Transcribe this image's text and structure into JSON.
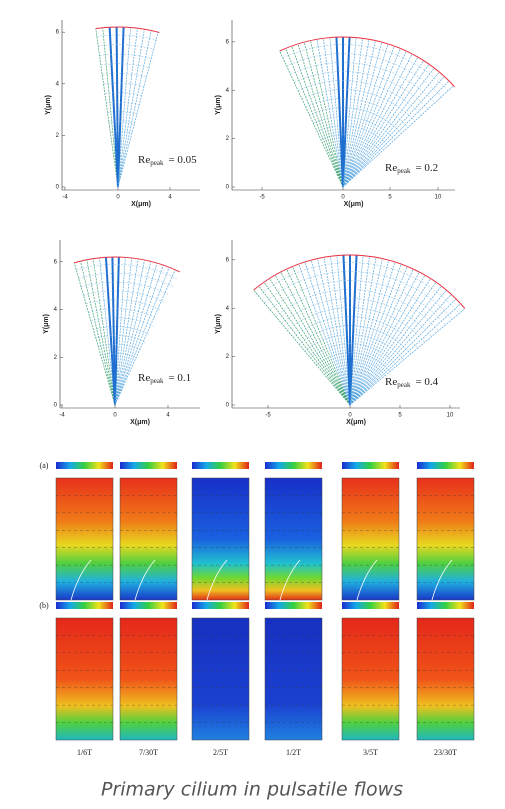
{
  "figure": {
    "fan_plots": [
      {
        "x_label": "X(μm)",
        "y_label": "Y(μm)",
        "x_ticks": [
          "-4",
          "0",
          "4"
        ],
        "y_ticks": [
          "0",
          "2",
          "4",
          "6"
        ],
        "re_label": {
          "base": "Re",
          "sub": "peak",
          "value": "= 0.05"
        }
      },
      {
        "x_label": "X(μm)",
        "y_label": "Y(μm)",
        "x_ticks": [
          "-5",
          "0",
          "5",
          "10"
        ],
        "y_ticks": [
          "0",
          "2",
          "4",
          "6"
        ],
        "re_label": {
          "base": "Re",
          "sub": "peak",
          "value": "= 0.2"
        }
      },
      {
        "x_label": "X(μm)",
        "y_label": "Y(μm)",
        "x_ticks": [
          "-4",
          "0",
          "4"
        ],
        "y_ticks": [
          "0",
          "2",
          "4",
          "6"
        ],
        "re_label": {
          "base": "Re",
          "sub": "peak",
          "value": "= 0.1"
        }
      },
      {
        "x_label": "X(μm)",
        "y_label": "Y(μm)",
        "x_ticks": [
          "-5",
          "0",
          "5",
          "10"
        ],
        "y_ticks": [
          "0",
          "2",
          "4",
          "6"
        ],
        "re_label": {
          "base": "Re",
          "sub": "peak",
          "value": "= 0.4"
        }
      }
    ],
    "contour": {
      "row_labels": [
        "(a)",
        "(b)"
      ],
      "time_labels": [
        "1/6T",
        "7/30T",
        "2/5T",
        "1/2T",
        "3/5T",
        "23/30T"
      ]
    },
    "caption": "Primary cilium in pulsatile flows"
  }
}
